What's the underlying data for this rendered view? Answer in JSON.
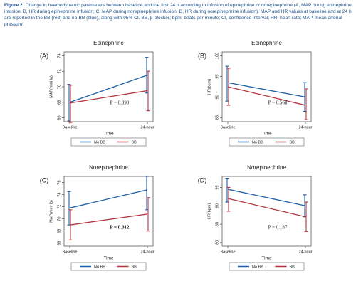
{
  "caption": {
    "label": "Figure 2",
    "text": "Change in haemodynamic parameters between baseline and the first 24 h according to infusion of epinephrine or norepinephrine (A, MAP during epinephrine infusion; B, HR during epinephrine infusion; C, MAP during norepinephrine infusion; D, HR during norepinephrine infusion). MAP and HR values at baseline and at 24 h are reported in the BB (red) and no-BB (blue), along with 95% CI. BB, β-blocker; bpm, beats per minute; CI, confidence interval; HR, heart rate; MAP, mean arterial pressure."
  },
  "chart_data": [
    {
      "type": "line",
      "panel_label": "(A)",
      "title": "Epinephrine",
      "ylabel": "MAP(mmHg)",
      "xlabel": "Time",
      "categories": [
        "Baseline",
        "24-hour"
      ],
      "series": [
        {
          "name": "No BB",
          "color": "#1f5fa6",
          "values": [
            68.0,
            71.5
          ],
          "ci_low": [
            65.6,
            69.2
          ],
          "ci_high": [
            70.3,
            73.8
          ]
        },
        {
          "name": "BB",
          "color": "#b0353f",
          "values": [
            67.9,
            69.5
          ],
          "ci_low": [
            65.4,
            66.9
          ],
          "ci_high": [
            70.2,
            72.0
          ]
        }
      ],
      "ylim": [
        65.5,
        74.5
      ],
      "yticks": [
        66,
        68,
        70,
        72,
        74
      ],
      "annotation": "P = 0.390",
      "annotation_bold": false
    },
    {
      "type": "line",
      "panel_label": "(B)",
      "title": "Epinephrine",
      "ylabel": "HR(bpm)",
      "xlabel": "Time",
      "categories": [
        "Baseline",
        "24-hour"
      ],
      "series": [
        {
          "name": "No BB",
          "color": "#1f5fa6",
          "values": [
            93.5,
            90.0
          ],
          "ci_low": [
            89.0,
            86.5
          ],
          "ci_high": [
            97.5,
            93.5
          ]
        },
        {
          "name": "BB",
          "color": "#b0353f",
          "values": [
            92.5,
            88.0
          ],
          "ci_low": [
            88.0,
            84.5
          ],
          "ci_high": [
            97.0,
            92.0
          ]
        }
      ],
      "ylim": [
        84,
        101
      ],
      "yticks": [
        85,
        90,
        95,
        100
      ],
      "annotation": "P = 0.568",
      "annotation_bold": false
    },
    {
      "type": "line",
      "panel_label": "(C)",
      "title": "Norepinephrine",
      "ylabel": "MAP(mmHg)",
      "xlabel": "Time",
      "categories": [
        "Baseline",
        "24-hour"
      ],
      "series": [
        {
          "name": "No BB",
          "color": "#1f5fa6",
          "values": [
            71.8,
            74.8
          ],
          "ci_low": [
            69.0,
            71.5
          ],
          "ci_high": [
            74.5,
            77.0
          ]
        },
        {
          "name": "BB",
          "color": "#b0353f",
          "values": [
            69.0,
            70.8
          ],
          "ci_low": [
            66.5,
            68.0
          ],
          "ci_high": [
            71.5,
            73.5
          ]
        }
      ],
      "ylim": [
        65.5,
        77
      ],
      "yticks": [
        66,
        68,
        70,
        72,
        74,
        76
      ],
      "annotation": "P = 0.012",
      "annotation_bold": true
    },
    {
      "type": "line",
      "panel_label": "(D)",
      "title": "Norepinephrine",
      "ylabel": "HR(bpm)",
      "xlabel": "Time",
      "categories": [
        "Baseline",
        "24-hour"
      ],
      "series": [
        {
          "name": "No BB",
          "color": "#1f5fa6",
          "values": [
            94.5,
            90.0
          ],
          "ci_low": [
            91.0,
            87.0
          ],
          "ci_high": [
            97.5,
            93.0
          ]
        },
        {
          "name": "BB",
          "color": "#b0353f",
          "values": [
            92.0,
            87.0
          ],
          "ci_low": [
            88.5,
            83.0
          ],
          "ci_high": [
            95.0,
            91.0
          ]
        }
      ],
      "ylim": [
        79,
        98
      ],
      "yticks": [
        80,
        85,
        90,
        95
      ],
      "annotation": "P = 0.187",
      "annotation_bold": false
    }
  ]
}
